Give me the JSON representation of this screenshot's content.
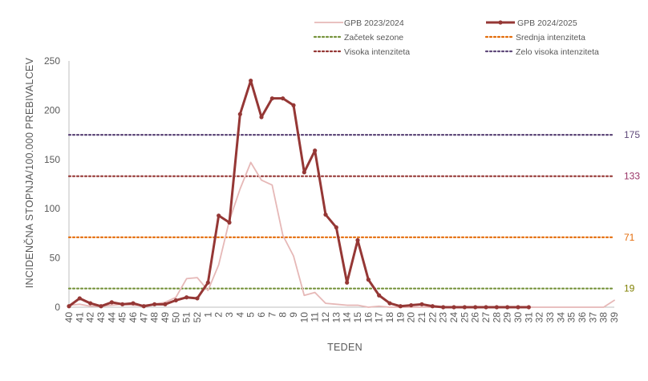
{
  "chart_data": {
    "type": "line",
    "xlabel": "TEDEN",
    "ylabel": "INCIDENČNA  STOPNJA/100.000  PREBIVALCEV",
    "ylim": [
      0,
      250
    ],
    "yticks": [
      "0",
      "50",
      "100",
      "150",
      "200",
      "250"
    ],
    "grid": false,
    "legend_position": "top-right",
    "categories": [
      "40",
      "41",
      "42",
      "43",
      "44",
      "45",
      "46",
      "47",
      "48",
      "49",
      "50",
      "51",
      "52",
      "1",
      "2",
      "3",
      "4",
      "5",
      "6",
      "7",
      "8",
      "9",
      "10",
      "11",
      "12",
      "13",
      "14",
      "15",
      "16",
      "17",
      "18",
      "19",
      "20",
      "21",
      "22",
      "23",
      "24",
      "25",
      "26",
      "27",
      "28",
      "29",
      "30",
      "31",
      "32",
      "33",
      "34",
      "35",
      "36",
      "37",
      "38",
      "39"
    ],
    "series": [
      {
        "name": "GPB 2023/2024",
        "color": "#e6b8b7",
        "values": [
          2,
          3,
          1,
          1,
          2,
          3,
          2,
          2,
          3,
          5,
          10,
          29,
          30,
          17,
          43,
          88,
          120,
          147,
          129,
          124,
          73,
          52,
          12,
          15,
          4,
          3,
          2,
          2,
          0,
          1,
          0,
          0,
          0,
          0,
          0,
          0,
          0,
          0,
          0,
          0,
          0,
          0,
          0,
          0,
          0,
          0,
          0,
          0,
          0,
          0,
          0,
          7
        ]
      },
      {
        "name": "GPB 2024/2025",
        "color": "#953735",
        "values": [
          1,
          9,
          4,
          1,
          5,
          3,
          4,
          1,
          3,
          3,
          7,
          10,
          9,
          25,
          93,
          86,
          196,
          230,
          193,
          212,
          212,
          205,
          137,
          159,
          94,
          81,
          25,
          68,
          28,
          12,
          4,
          1,
          2,
          3,
          1,
          0,
          0,
          0,
          0,
          0,
          0,
          0,
          0,
          0,
          null,
          null,
          null,
          null,
          null,
          null,
          null,
          null
        ]
      }
    ],
    "thresholds": [
      {
        "name": "Začetek sezone",
        "value": 19,
        "label": "19",
        "color": "#76933c"
      },
      {
        "name": "Srednja intenziteta",
        "value": 71,
        "label": "71",
        "color": "#e46c0a"
      },
      {
        "name": "Visoka intenziteta",
        "value": 133,
        "label": "133",
        "color": "#953735"
      },
      {
        "name": "Zelo visoka intenziteta",
        "value": 175,
        "label": "175",
        "color": "#604a7b"
      }
    ],
    "threshold_label_colors": [
      "#808000",
      "#e46c0a",
      "#993366",
      "#604a7b"
    ]
  }
}
